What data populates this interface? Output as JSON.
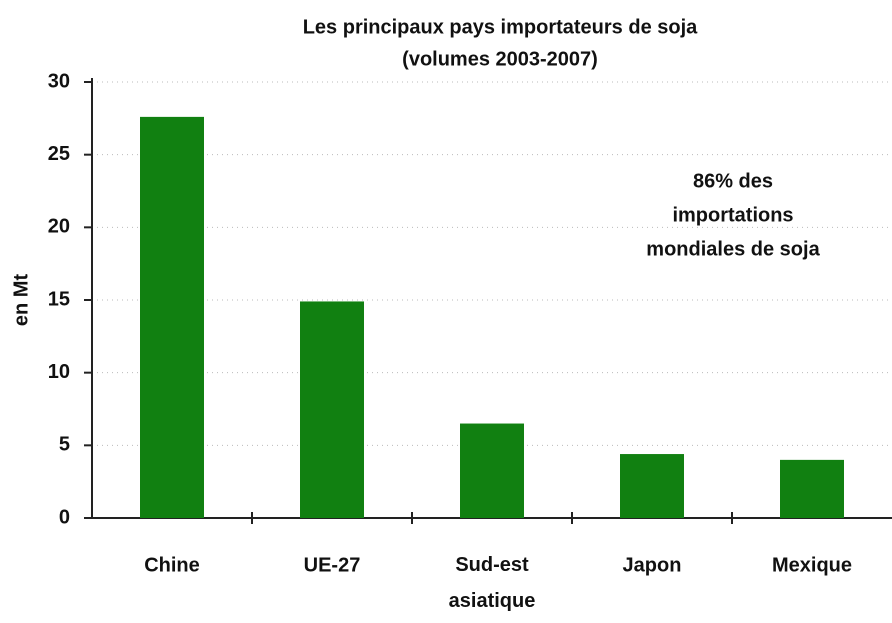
{
  "chart_data": {
    "type": "bar",
    "title": "Les principaux pays importateurs de soja",
    "subtitle": "(volumes 2003-2007)",
    "y_label": "en Mt",
    "annotation": [
      "86% des",
      "importations",
      "mondiales de soja"
    ],
    "categories": [
      "Chine",
      "UE-27",
      "Sud-est asiatique",
      "Japon",
      "Mexique"
    ],
    "values": [
      27.6,
      14.9,
      6.5,
      4.4,
      4.0
    ],
    "color": "#118011",
    "ylim": [
      0,
      30
    ],
    "yticks": [
      0,
      5,
      10,
      15,
      20,
      25,
      30
    ],
    "grid": true
  }
}
